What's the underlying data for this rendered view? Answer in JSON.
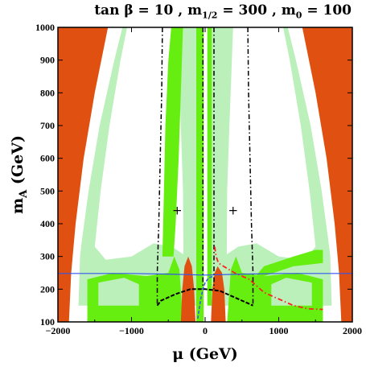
{
  "chart_data": {
    "type": "heatmap",
    "title": {
      "prefix": "tan β = 10 ,  m",
      "sub1": "1/2",
      "mid": " = 300 ,  m",
      "sub2": "0",
      "suffix": " = 100"
    },
    "xlabel": "μ (GeV)",
    "ylabel": {
      "main": "m",
      "sub": "A",
      "unit": " (GeV)"
    },
    "xlim": [
      -2000,
      2000
    ],
    "ylim": [
      100,
      1000
    ],
    "x_ticks": [
      "−2000",
      "−1000",
      "0",
      "1000",
      "2000"
    ],
    "x_tick_values": [
      -2000,
      -1000,
      0,
      1000,
      2000
    ],
    "y_ticks": [
      "100",
      "200",
      "300",
      "400",
      "500",
      "600",
      "700",
      "800",
      "900",
      "1000"
    ],
    "y_tick_values": [
      100,
      200,
      300,
      400,
      500,
      600,
      700,
      800,
      900,
      1000
    ],
    "colors": {
      "excluded_orange": "#e05010",
      "bright_green": "#66ee11",
      "light_green": "#bbf0bb",
      "white": "#ffffff",
      "black_line": "#000000",
      "red_line": "#ff2020",
      "blue_line": "#3355ee"
    },
    "regions": {
      "orange_left": [
        [
          -2000,
          100
        ],
        [
          -2000,
          1000
        ],
        [
          -1320,
          1000
        ],
        [
          -1500,
          800
        ],
        [
          -1650,
          600
        ],
        [
          -1760,
          400
        ],
        [
          -1820,
          250
        ],
        [
          -1850,
          100
        ]
      ],
      "orange_right": [
        [
          2000,
          100
        ],
        [
          2000,
          1000
        ],
        [
          1320,
          1000
        ],
        [
          1500,
          800
        ],
        [
          1650,
          600
        ],
        [
          1760,
          400
        ],
        [
          1820,
          250
        ],
        [
          1850,
          100
        ]
      ],
      "light_green_left": [
        [
          -1720,
          150
        ],
        [
          -1700,
          300
        ],
        [
          -1600,
          500
        ],
        [
          -1450,
          700
        ],
        [
          -1250,
          900
        ],
        [
          -1140,
          1000
        ],
        [
          -1060,
          1000
        ],
        [
          -1150,
          900
        ],
        [
          -1300,
          700
        ],
        [
          -1420,
          500
        ],
        [
          -1500,
          330
        ],
        [
          -1350,
          290
        ],
        [
          -1000,
          300
        ],
        [
          -700,
          340
        ],
        [
          -450,
          330
        ],
        [
          -250,
          300
        ],
        [
          -250,
          150
        ]
      ],
      "light_green_right": [
        [
          1720,
          150
        ],
        [
          1700,
          300
        ],
        [
          1600,
          500
        ],
        [
          1450,
          700
        ],
        [
          1250,
          900
        ],
        [
          1140,
          1000
        ],
        [
          1060,
          1000
        ],
        [
          1150,
          900
        ],
        [
          1300,
          700
        ],
        [
          1420,
          500
        ],
        [
          1500,
          330
        ],
        [
          1350,
          290
        ],
        [
          1000,
          300
        ],
        [
          700,
          340
        ],
        [
          450,
          330
        ],
        [
          250,
          300
        ],
        [
          250,
          150
        ]
      ],
      "light_green_center_left": [
        [
          -290,
          150
        ],
        [
          -300,
          500
        ],
        [
          -330,
          700
        ],
        [
          -380,
          1000
        ],
        [
          -80,
          1000
        ],
        [
          -80,
          150
        ]
      ],
      "light_green_center_right": [
        [
          80,
          150
        ],
        [
          80,
          1000
        ],
        [
          380,
          1000
        ],
        [
          330,
          700
        ],
        [
          300,
          500
        ],
        [
          290,
          150
        ]
      ],
      "green_left_band": [
        [
          -580,
          300
        ],
        [
          -560,
          500
        ],
        [
          -540,
          700
        ],
        [
          -500,
          900
        ],
        [
          -460,
          1000
        ],
        [
          -300,
          1000
        ],
        [
          -330,
          800
        ],
        [
          -360,
          600
        ],
        [
          -400,
          400
        ],
        [
          -430,
          300
        ]
      ],
      "green_center": [
        [
          -120,
          100
        ],
        [
          -120,
          1000
        ],
        [
          -20,
          1000
        ],
        [
          -20,
          100
        ]
      ],
      "green_center_right": [
        [
          30,
          150
        ],
        [
          30,
          1000
        ],
        [
          90,
          1000
        ],
        [
          90,
          150
        ]
      ],
      "green_bottom_left": [
        [
          -1600,
          100
        ],
        [
          -1600,
          230
        ],
        [
          -1250,
          250
        ],
        [
          -800,
          240
        ],
        [
          -500,
          250
        ],
        [
          -420,
          300
        ],
        [
          -350,
          260
        ],
        [
          -300,
          100
        ]
      ],
      "green_bottom_right": [
        [
          1600,
          100
        ],
        [
          1600,
          230
        ],
        [
          1250,
          250
        ],
        [
          800,
          240
        ],
        [
          500,
          250
        ],
        [
          420,
          300
        ],
        [
          350,
          260
        ],
        [
          300,
          100
        ]
      ],
      "green_curve_right": [
        [
          500,
          190
        ],
        [
          800,
          270
        ],
        [
          1200,
          300
        ],
        [
          1500,
          320
        ],
        [
          1600,
          320
        ],
        [
          1600,
          280
        ],
        [
          1200,
          270
        ],
        [
          800,
          240
        ],
        [
          520,
          170
        ]
      ],
      "light_inner_left": [
        [
          -1450,
          150
        ],
        [
          -1450,
          220
        ],
        [
          -1100,
          235
        ],
        [
          -900,
          215
        ],
        [
          -900,
          150
        ]
      ],
      "light_inner_right": [
        [
          1450,
          150
        ],
        [
          1450,
          220
        ],
        [
          1100,
          235
        ],
        [
          900,
          215
        ],
        [
          900,
          150
        ]
      ],
      "orange_bump_left": [
        [
          -330,
          100
        ],
        [
          -310,
          200
        ],
        [
          -280,
          270
        ],
        [
          -230,
          300
        ],
        [
          -180,
          270
        ],
        [
          -150,
          200
        ],
        [
          -130,
          100
        ]
      ],
      "orange_bump_right": [
        [
          80,
          100
        ],
        [
          100,
          200
        ],
        [
          130,
          250
        ],
        [
          170,
          270
        ],
        [
          230,
          250
        ],
        [
          260,
          200
        ],
        [
          280,
          100
        ]
      ]
    },
    "white_boundary_curves": {
      "left": [
        [
          -1770,
          100
        ],
        [
          -1720,
          300
        ],
        [
          -1600,
          500
        ],
        [
          -1450,
          700
        ],
        [
          -1250,
          900
        ],
        [
          -1140,
          1000
        ]
      ],
      "right": [
        [
          1770,
          100
        ],
        [
          1720,
          300
        ],
        [
          1600,
          500
        ],
        [
          1450,
          700
        ],
        [
          1250,
          900
        ],
        [
          1140,
          1000
        ]
      ]
    },
    "lines": {
      "dashdot_black_left": [
        [
          -580,
          1000
        ],
        [
          -590,
          800
        ],
        [
          -610,
          600
        ],
        [
          -630,
          400
        ],
        [
          -650,
          250
        ],
        [
          -650,
          150
        ]
      ],
      "dashdot_black_right": [
        [
          580,
          1000
        ],
        [
          590,
          800
        ],
        [
          610,
          600
        ],
        [
          630,
          400
        ],
        [
          650,
          250
        ],
        [
          650,
          150
        ]
      ],
      "dashdot_black_center_left": [
        [
          -30,
          1000
        ],
        [
          -30,
          200
        ]
      ],
      "dashdot_black_center_right": [
        [
          120,
          1000
        ],
        [
          120,
          200
        ]
      ],
      "dashed_black_bottom": [
        [
          -650,
          150
        ],
        [
          -600,
          165
        ],
        [
          -400,
          185
        ],
        [
          -200,
          200
        ],
        [
          0,
          200
        ],
        [
          200,
          195
        ],
        [
          400,
          175
        ],
        [
          600,
          155
        ],
        [
          650,
          150
        ]
      ],
      "dashdot_red": [
        [
          130,
          330
        ],
        [
          150,
          300
        ],
        [
          180,
          280
        ],
        [
          250,
          270
        ],
        [
          400,
          250
        ],
        [
          600,
          230
        ],
        [
          800,
          190
        ],
        [
          1000,
          170
        ],
        [
          1200,
          150
        ],
        [
          1400,
          140
        ],
        [
          1600,
          138
        ]
      ],
      "dashed_blue": [
        [
          -100,
          110
        ],
        [
          -80,
          140
        ],
        [
          -60,
          170
        ],
        [
          -30,
          200
        ],
        [
          0,
          220
        ],
        [
          50,
          235
        ],
        [
          120,
          240
        ]
      ],
      "blue_solid": [
        [
          -2000,
          248
        ],
        [
          -1000,
          248
        ],
        [
          -500,
          246
        ],
        [
          0,
          243
        ],
        [
          500,
          246
        ],
        [
          1000,
          248
        ],
        [
          2000,
          248
        ]
      ]
    },
    "markers": [
      {
        "symbol": "+",
        "x": -380,
        "y": 440
      },
      {
        "symbol": "+",
        "x": 380,
        "y": 440
      }
    ]
  }
}
